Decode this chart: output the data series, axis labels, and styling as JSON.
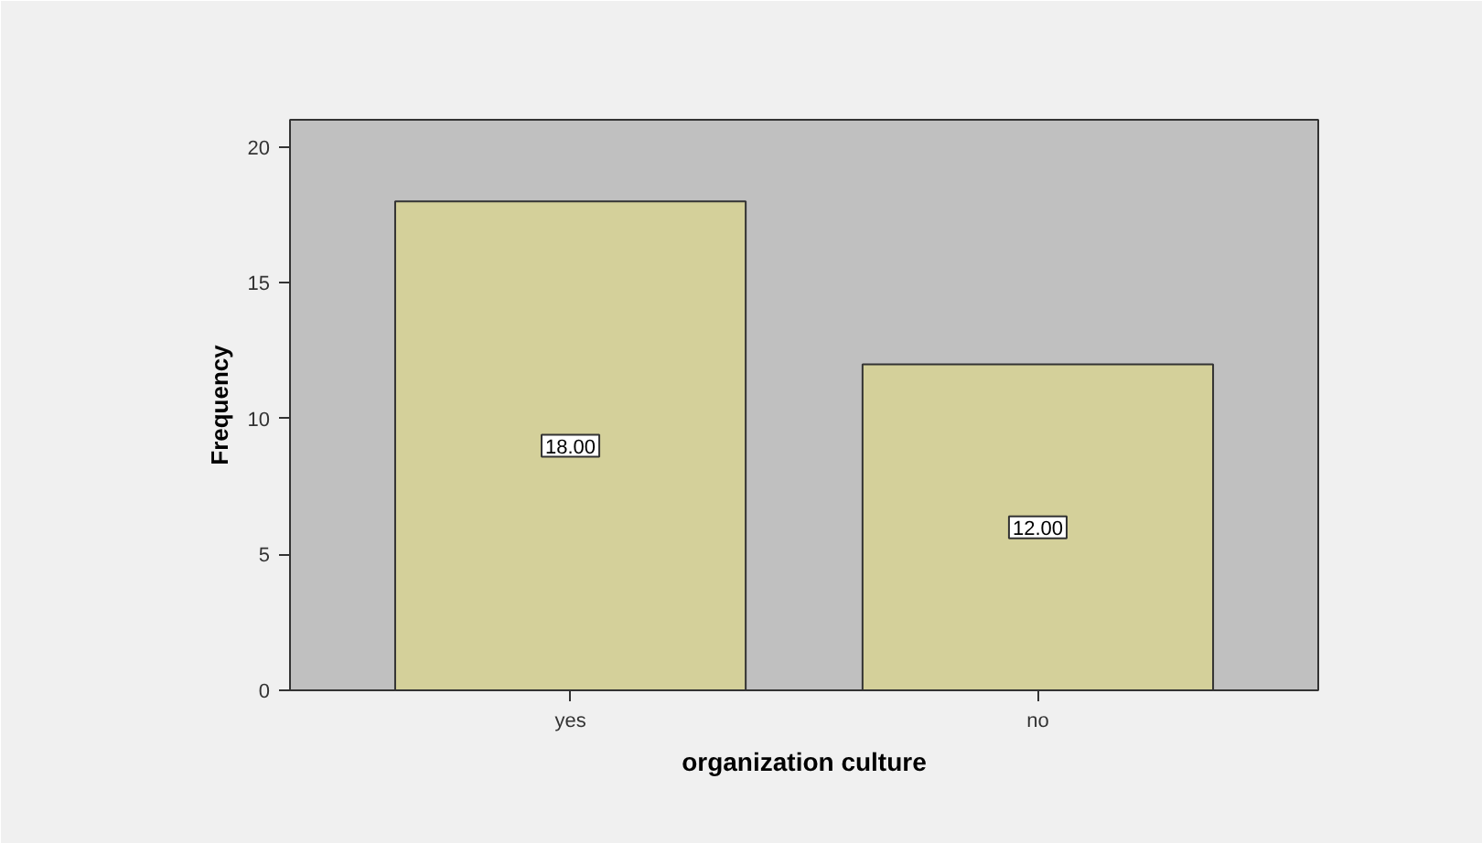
{
  "chart_data": {
    "type": "bar",
    "categories": [
      "yes",
      "no"
    ],
    "values": [
      18,
      12
    ],
    "color": "#d4d09a",
    "value_labels": [
      "18.00",
      "12.00"
    ],
    "xlabel": "organization culture",
    "ylabel": "Frequency",
    "ylim": [
      0,
      21
    ],
    "yticks": [
      0,
      5,
      10,
      15,
      20
    ]
  }
}
